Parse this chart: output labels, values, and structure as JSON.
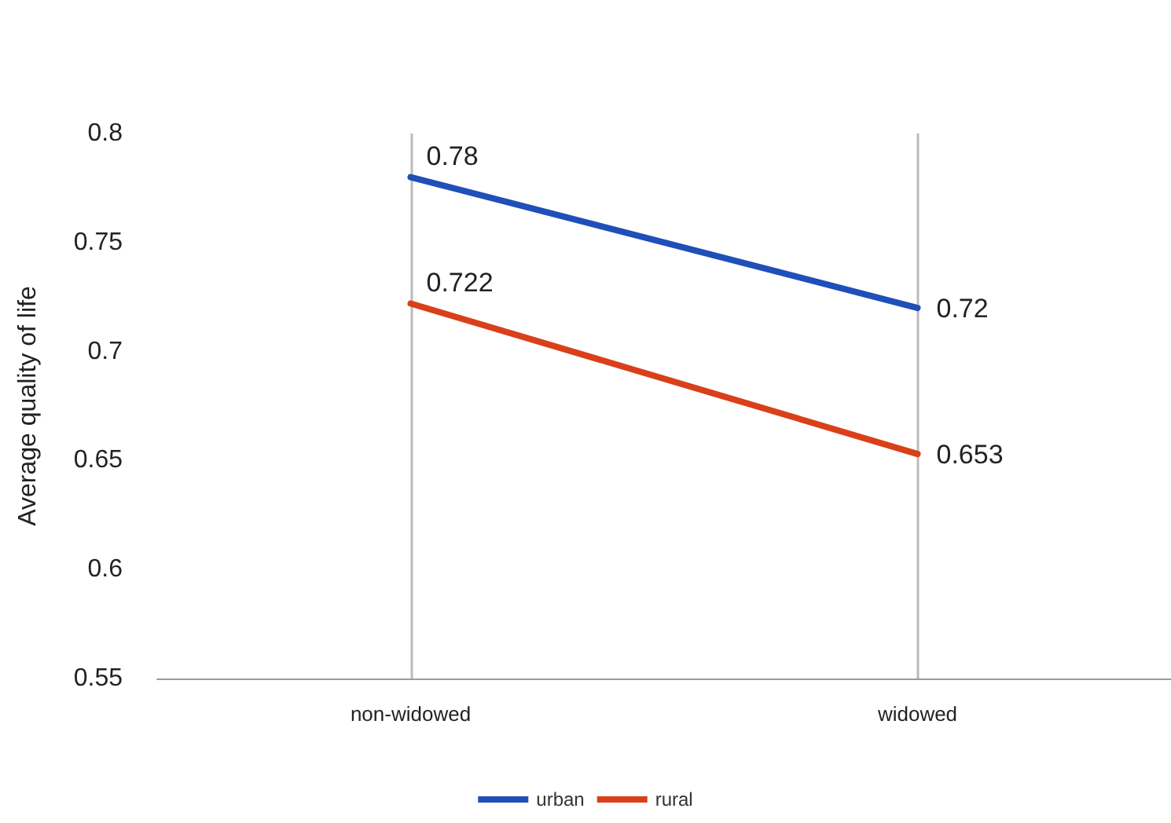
{
  "chart_data": {
    "type": "line",
    "ylabel": "Average quality of life",
    "categories": [
      "non-widowed",
      "widowed"
    ],
    "series": [
      {
        "name": "urban",
        "color": "#1f4fb8",
        "values": [
          0.78,
          0.72
        ]
      },
      {
        "name": "rural",
        "color": "#d9401a",
        "values": [
          0.722,
          0.653
        ]
      }
    ],
    "ylim": [
      0.55,
      0.8
    ],
    "yticks": [
      0.55,
      0.6,
      0.65,
      0.7,
      0.75,
      0.8
    ],
    "data_labels": true,
    "grid": "x",
    "legend": "bottom",
    "marker": "none",
    "line_style": "solid"
  }
}
